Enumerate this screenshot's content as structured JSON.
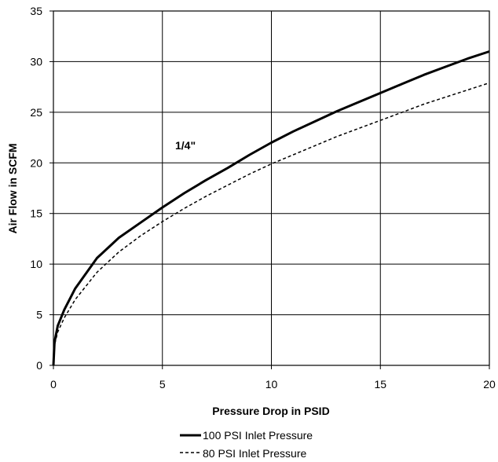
{
  "chart_data": {
    "type": "line",
    "title": "",
    "xlabel": "Pressure Drop in PSID",
    "ylabel": "Air Flow in SCFM",
    "xlim": [
      0,
      20
    ],
    "ylim": [
      0,
      35
    ],
    "xticks": [
      0,
      5,
      10,
      15,
      20
    ],
    "yticks": [
      0,
      5,
      10,
      15,
      20,
      25,
      30,
      35
    ],
    "grid": true,
    "legend_position": "bottom-center",
    "annotation": "1/4\"",
    "series": [
      {
        "name": "100 PSI Inlet Pressure",
        "style": "solid",
        "color": "#000000",
        "x": [
          0,
          0.05,
          0.2,
          0.5,
          1,
          2,
          3,
          4,
          5,
          6,
          7,
          8,
          9,
          10,
          11,
          12,
          13,
          14,
          15,
          16,
          17,
          18,
          19,
          20
        ],
        "y": [
          0,
          2.3,
          3.9,
          5.5,
          7.6,
          10.6,
          12.6,
          14.1,
          15.6,
          17.0,
          18.3,
          19.5,
          20.8,
          22.0,
          23.1,
          24.1,
          25.1,
          26.0,
          26.9,
          27.8,
          28.7,
          29.5,
          30.3,
          31.0
        ]
      },
      {
        "name": "80 PSI Inlet Pressure",
        "style": "dashed",
        "color": "#000000",
        "x": [
          0,
          0.05,
          0.2,
          0.5,
          1,
          2,
          3,
          4,
          5,
          6,
          7,
          8,
          9,
          10,
          11,
          12,
          13,
          14,
          15,
          16,
          17,
          18,
          19,
          20
        ],
        "y": [
          0,
          2.0,
          3.3,
          4.7,
          6.5,
          9.2,
          11.2,
          12.8,
          14.2,
          15.5,
          16.7,
          17.8,
          18.9,
          19.9,
          20.8,
          21.7,
          22.6,
          23.4,
          24.2,
          25.0,
          25.8,
          26.5,
          27.2,
          27.9
        ]
      }
    ]
  }
}
